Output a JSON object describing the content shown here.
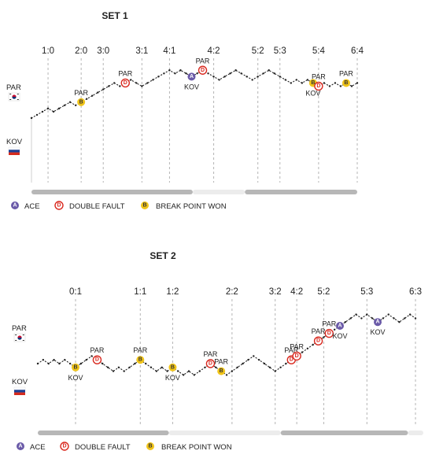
{
  "colors": {
    "ace": "#6a5aa8",
    "double_fault": "#d9281e",
    "break_point_won": "#f0c419",
    "line": "#222222",
    "grid": "#b5b5b5",
    "bar_dark": "#b7b7b7",
    "bar_light": "#ececec"
  },
  "players": {
    "top": {
      "name": "PAR",
      "flag": "korea-flag-icon"
    },
    "bottom": {
      "name": "KOV",
      "flag": "russia-flag-icon"
    }
  },
  "legend": [
    {
      "code": "A",
      "label": "ACE",
      "kind": "ace"
    },
    {
      "code": "D",
      "label": "DOUBLE FAULT",
      "kind": "double_fault"
    },
    {
      "code": "B",
      "label": "BREAK POINT WON",
      "kind": "break_point_won"
    }
  ],
  "chart_data": [
    {
      "type": "line",
      "title": "SET 1",
      "y_meaning": "point momentum (up = PAR, down = KOV)",
      "games": [
        "1:0",
        "2:0",
        "3:0",
        "3:1",
        "4:1",
        "4:2",
        "5:2",
        "5:3",
        "5:4",
        "6:4"
      ],
      "x": [
        0,
        1,
        2,
        3,
        4,
        5,
        6,
        7,
        8,
        9,
        10,
        11,
        12,
        13,
        14,
        15,
        16,
        17,
        18,
        19,
        20,
        21,
        22,
        23,
        24,
        25,
        26,
        27,
        28,
        29,
        30,
        31,
        32,
        33,
        34,
        35,
        36,
        37,
        38,
        39,
        40,
        41,
        42,
        43,
        44,
        45,
        46,
        47,
        48,
        49,
        50,
        51,
        52,
        53,
        54,
        55,
        56,
        57,
        58,
        59
      ],
      "y": [
        0,
        1,
        2,
        3,
        2,
        3,
        4,
        5,
        4,
        5,
        6,
        7,
        8,
        9,
        10,
        11,
        10,
        11,
        12,
        11,
        10,
        11,
        12,
        13,
        14,
        15,
        14,
        15,
        14,
        13,
        14,
        15,
        14,
        13,
        12,
        13,
        14,
        15,
        14,
        13,
        12,
        13,
        14,
        15,
        14,
        13,
        12,
        11,
        12,
        11,
        12,
        11,
        10,
        11,
        10,
        11,
        10,
        11,
        10,
        11
      ],
      "game_end_index": [
        3,
        9,
        13,
        20,
        25,
        33,
        41,
        45,
        52,
        59
      ],
      "events": [
        {
          "type": "break_point_won",
          "code": "B",
          "index": 9,
          "player": "PAR",
          "label": "PAR"
        },
        {
          "type": "double_fault",
          "code": "D",
          "index": 17,
          "player": "PAR",
          "label": "PAR"
        },
        {
          "type": "ace",
          "code": "A",
          "index": 29,
          "player": "KOV",
          "label": "KOV"
        },
        {
          "type": "double_fault",
          "code": "D",
          "index": 31,
          "player": "PAR",
          "label": "PAR"
        },
        {
          "type": "break_point_won",
          "code": "B",
          "index": 51,
          "player": "KOV",
          "label": "KOV"
        },
        {
          "type": "double_fault",
          "code": "D",
          "index": 52,
          "player": "PAR",
          "label": "PAR"
        },
        {
          "type": "break_point_won",
          "code": "B",
          "index": 57,
          "player": "PAR",
          "label": "PAR"
        }
      ],
      "bar_segments": [
        {
          "tone": "dark",
          "from": 0,
          "to": 0.495
        },
        {
          "tone": "light",
          "from": 0.495,
          "to": 0.655
        },
        {
          "tone": "dark",
          "from": 0.655,
          "to": 1
        }
      ]
    },
    {
      "type": "line",
      "title": "SET 2",
      "y_meaning": "point momentum (up = PAR, down = KOV)",
      "games": [
        "0:1",
        "1:1",
        "1:2",
        "2:2",
        "3:2",
        "4:2",
        "5:2",
        "5:3",
        "6:3"
      ],
      "x": [
        0,
        1,
        2,
        3,
        4,
        5,
        6,
        7,
        8,
        9,
        10,
        11,
        12,
        13,
        14,
        15,
        16,
        17,
        18,
        19,
        20,
        21,
        22,
        23,
        24,
        25,
        26,
        27,
        28,
        29,
        30,
        31,
        32,
        33,
        34,
        35,
        36,
        37,
        38,
        39,
        40,
        41,
        42,
        43,
        44,
        45,
        46,
        47,
        48,
        49,
        50,
        51,
        52,
        53,
        54,
        55,
        56,
        57,
        58,
        59,
        60,
        61,
        62,
        63,
        64,
        65,
        66,
        67,
        68,
        69,
        70
      ],
      "y": [
        0,
        1,
        0,
        1,
        0,
        1,
        0,
        -1,
        0,
        1,
        2,
        1,
        0,
        -1,
        -2,
        -1,
        -2,
        -1,
        0,
        1,
        0,
        -1,
        -2,
        -1,
        -2,
        -1,
        -2,
        -3,
        -2,
        -3,
        -2,
        -1,
        0,
        -1,
        -2,
        -3,
        -2,
        -1,
        0,
        1,
        2,
        1,
        0,
        -1,
        -2,
        -1,
        0,
        1,
        2,
        3,
        4,
        5,
        6,
        7,
        8,
        9,
        10,
        11,
        12,
        13,
        12,
        13,
        12,
        11,
        12,
        13,
        12,
        11,
        12,
        13,
        12
      ],
      "game_end_index": [
        7,
        19,
        25,
        36,
        44,
        48,
        53,
        61,
        70
      ],
      "events": [
        {
          "type": "break_point_won",
          "code": "B",
          "index": 7,
          "player": "KOV",
          "label": "KOV"
        },
        {
          "type": "double_fault",
          "code": "D",
          "index": 11,
          "player": "PAR",
          "label": "PAR"
        },
        {
          "type": "break_point_won",
          "code": "B",
          "index": 19,
          "player": "PAR",
          "label": "PAR"
        },
        {
          "type": "break_point_won",
          "code": "B",
          "index": 25,
          "player": "KOV",
          "label": "KOV"
        },
        {
          "type": "double_fault",
          "code": "D",
          "index": 32,
          "player": "PAR",
          "label": "PAR"
        },
        {
          "type": "break_point_won",
          "code": "B",
          "index": 34,
          "player": "PAR",
          "label": "PAR"
        },
        {
          "type": "double_fault",
          "code": "D",
          "index": 47,
          "player": "PAR",
          "label": "PAR"
        },
        {
          "type": "double_fault",
          "code": "D",
          "index": 48,
          "player": "PAR",
          "label": "PAR"
        },
        {
          "type": "double_fault",
          "code": "D",
          "index": 52,
          "player": "PAR",
          "label": "PAR"
        },
        {
          "type": "double_fault",
          "code": "D",
          "index": 54,
          "player": "PAR",
          "label": "PAR"
        },
        {
          "type": "ace",
          "code": "A",
          "index": 56,
          "player": "KOV",
          "label": "KOV"
        },
        {
          "type": "ace",
          "code": "A",
          "index": 63,
          "player": "KOV",
          "label": "KOV"
        }
      ],
      "bar_segments": [
        {
          "tone": "dark",
          "from": 0,
          "to": 0.34
        },
        {
          "tone": "light",
          "from": 0.34,
          "to": 0.63
        },
        {
          "tone": "dark",
          "from": 0.63,
          "to": 0.96
        },
        {
          "tone": "light",
          "from": 0.96,
          "to": 1
        }
      ]
    }
  ]
}
